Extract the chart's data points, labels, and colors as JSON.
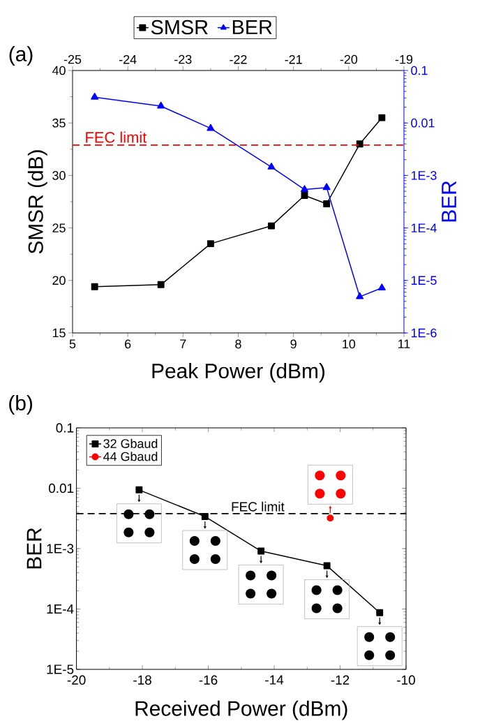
{
  "chart_data": [
    {
      "type": "line",
      "xlabel": "Peak Power (dBm)",
      "ylabel": "SMSR (dB)",
      "y2label": "BER",
      "x": [
        5.4,
        6.6,
        7.5,
        8.6,
        9.2,
        9.6,
        10.2,
        10.6
      ],
      "xlim": [
        5,
        11
      ],
      "xticks": [
        5,
        6,
        7,
        8,
        9,
        10,
        11
      ],
      "ylim": [
        15,
        40
      ],
      "yticks": [
        15,
        20,
        25,
        30,
        35,
        40
      ],
      "x2lim": [
        -25,
        -19
      ],
      "x2ticks": [
        -25,
        -24,
        -23,
        -22,
        -21,
        -20,
        -19
      ],
      "y2lim": [
        1e-06,
        0.1
      ],
      "y2ticks": [
        {
          "value": 1e-06,
          "label": "1E-6"
        },
        {
          "value": 1e-05,
          "label": "1E-5"
        },
        {
          "value": 0.0001,
          "label": "1E-4"
        },
        {
          "value": 0.001,
          "label": "1E-3"
        },
        0.01,
        0.1
      ],
      "log": "y2",
      "series": [
        {
          "name": "SMSR",
          "color": "#000000",
          "marker": "square",
          "values": [
            19.4,
            19.6,
            23.5,
            25.2,
            28.1,
            27.3,
            33.0,
            35.5
          ]
        },
        {
          "name": "BER",
          "color": "#0000ff",
          "marker": "triangle",
          "axis": "y2",
          "values": [
            0.031,
            0.021,
            0.0079,
            0.00145,
            0.00054,
            0.00059,
            4.9e-06,
            7.2e-06
          ]
        }
      ],
      "ref_lines": [
        {
          "axis": "y2",
          "value": 0.0038,
          "label": "FEC limit",
          "color": "#ff0000",
          "line_style": "dashed"
        }
      ],
      "legend": "top",
      "annotations": [
        "(a)"
      ]
    },
    {
      "type": "line",
      "xlabel": "Received Power (dBm)",
      "ylabel": "BER",
      "xlim": [
        -20,
        -10
      ],
      "xticks": [
        -20,
        -18,
        -16,
        -14,
        -12,
        -10
      ],
      "ylim": [
        1e-05,
        0.1
      ],
      "yticks": [
        {
          "value": 1e-05,
          "label": "1E-5"
        },
        {
          "value": 0.0001,
          "label": "1E-4"
        },
        {
          "value": 0.001,
          "label": "1E-3"
        },
        0.01,
        0.1
      ],
      "log": true,
      "series": [
        {
          "name": "32 Gbaud",
          "color": "#000000",
          "marker": "square",
          "x": [
            -18.1,
            -16.1,
            -14.4,
            -12.4,
            -10.8
          ],
          "values": [
            0.0094,
            0.0034,
            0.00091,
            0.00052,
            8.7e-05
          ]
        },
        {
          "name": "44 Gbaud",
          "color": "#ff0000",
          "marker": "circle",
          "x": [
            -12.3
          ],
          "values": [
            0.0032
          ]
        }
      ],
      "ref_lines": [
        {
          "axis": "y",
          "value": 0.0038,
          "label": "FEC limit",
          "color": "#000000",
          "line_style": "dashed"
        }
      ],
      "legend": "top left",
      "annotations": [
        "(b)"
      ]
    }
  ]
}
